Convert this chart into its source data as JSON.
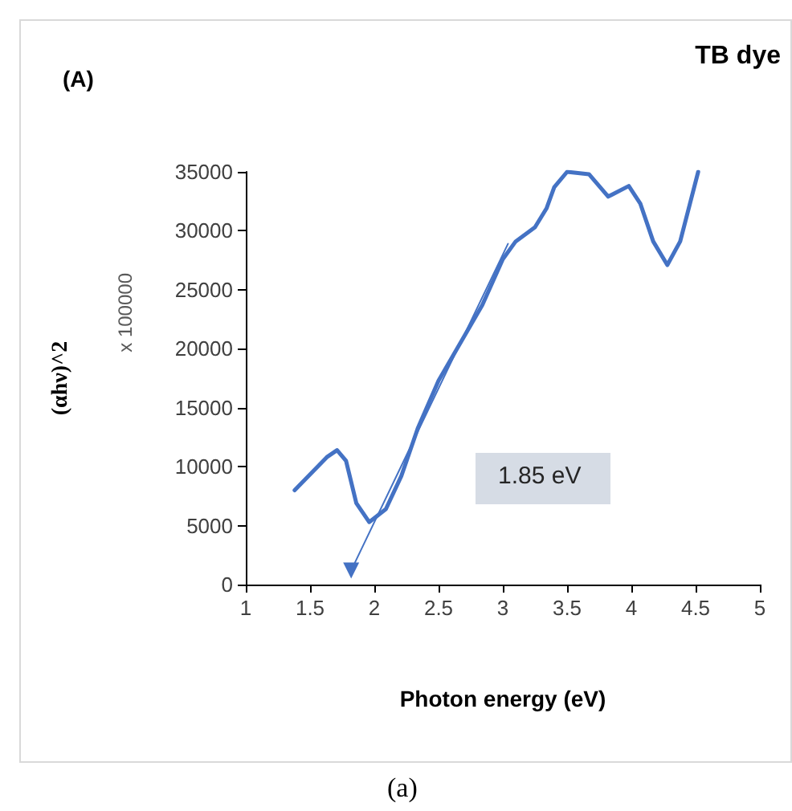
{
  "chart_data": {
    "type": "line",
    "title": "(A)",
    "subtitle": "TB dye",
    "xlabel": "Photon energy (eV)",
    "ylabel": "(αhν)^2",
    "annotations": [
      "x 100000",
      "1.85 eV",
      "(a)"
    ],
    "xlim": [
      1,
      5
    ],
    "xticks": [
      1,
      1.5,
      2,
      2.5,
      3,
      3.5,
      4,
      4.5,
      5
    ],
    "ylim": [
      0,
      35000
    ],
    "yticks": [
      0,
      5000,
      10000,
      15000,
      20000,
      25000,
      30000,
      35000
    ],
    "grid": false,
    "marker": "none",
    "line_style": "solid",
    "series": [
      {
        "color": "#4472c4",
        "x": [
          1.38,
          1.63,
          1.71,
          1.78,
          1.86,
          1.96,
          2.09,
          2.21,
          2.34,
          2.5,
          2.67,
          2.84,
          3.0,
          3.1,
          3.25,
          3.34,
          3.4,
          3.5,
          3.67,
          3.82,
          3.98,
          4.07,
          4.17,
          4.28,
          4.38,
          4.52
        ],
        "values": [
          8000,
          10800,
          11400,
          10500,
          6900,
          5300,
          6400,
          9200,
          13300,
          17300,
          20500,
          23700,
          27600,
          29100,
          30300,
          31900,
          33700,
          35000,
          34800,
          32900,
          33800,
          32300,
          29100,
          27100,
          29100,
          35000
        ]
      },
      {
        "color": "#4472c4",
        "marker": "triangle",
        "x": [
          1.82,
          3.04
        ],
        "values": [
          1200,
          28900
        ]
      }
    ]
  }
}
